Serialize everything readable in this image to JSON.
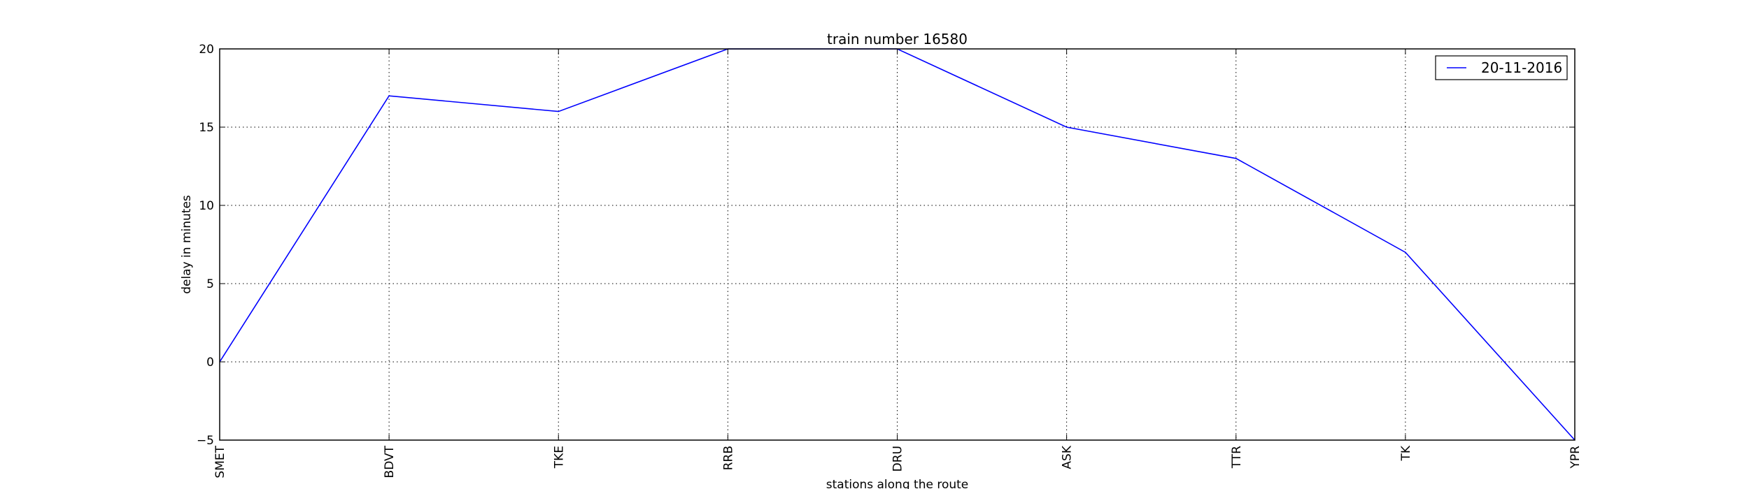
{
  "chart_data": {
    "type": "line",
    "title": "train number 16580",
    "xlabel": "stations along the route",
    "ylabel": "delay in minutes",
    "categories": [
      "SMET",
      "BDVT",
      "TKE",
      "RRB",
      "DRU",
      "ASK",
      "TTR",
      "TK",
      "YPR"
    ],
    "series": [
      {
        "name": "20-11-2016",
        "color": "#0000ff",
        "values": [
          0,
          17,
          16,
          20,
          20,
          15,
          13,
          7,
          -5
        ]
      }
    ],
    "ylim": [
      -5,
      20
    ],
    "yticks": [
      "−5",
      "0",
      "5",
      "10",
      "15",
      "20"
    ],
    "grid": true,
    "legend_position": "top-right",
    "tick_label_rotation": "vertical"
  }
}
